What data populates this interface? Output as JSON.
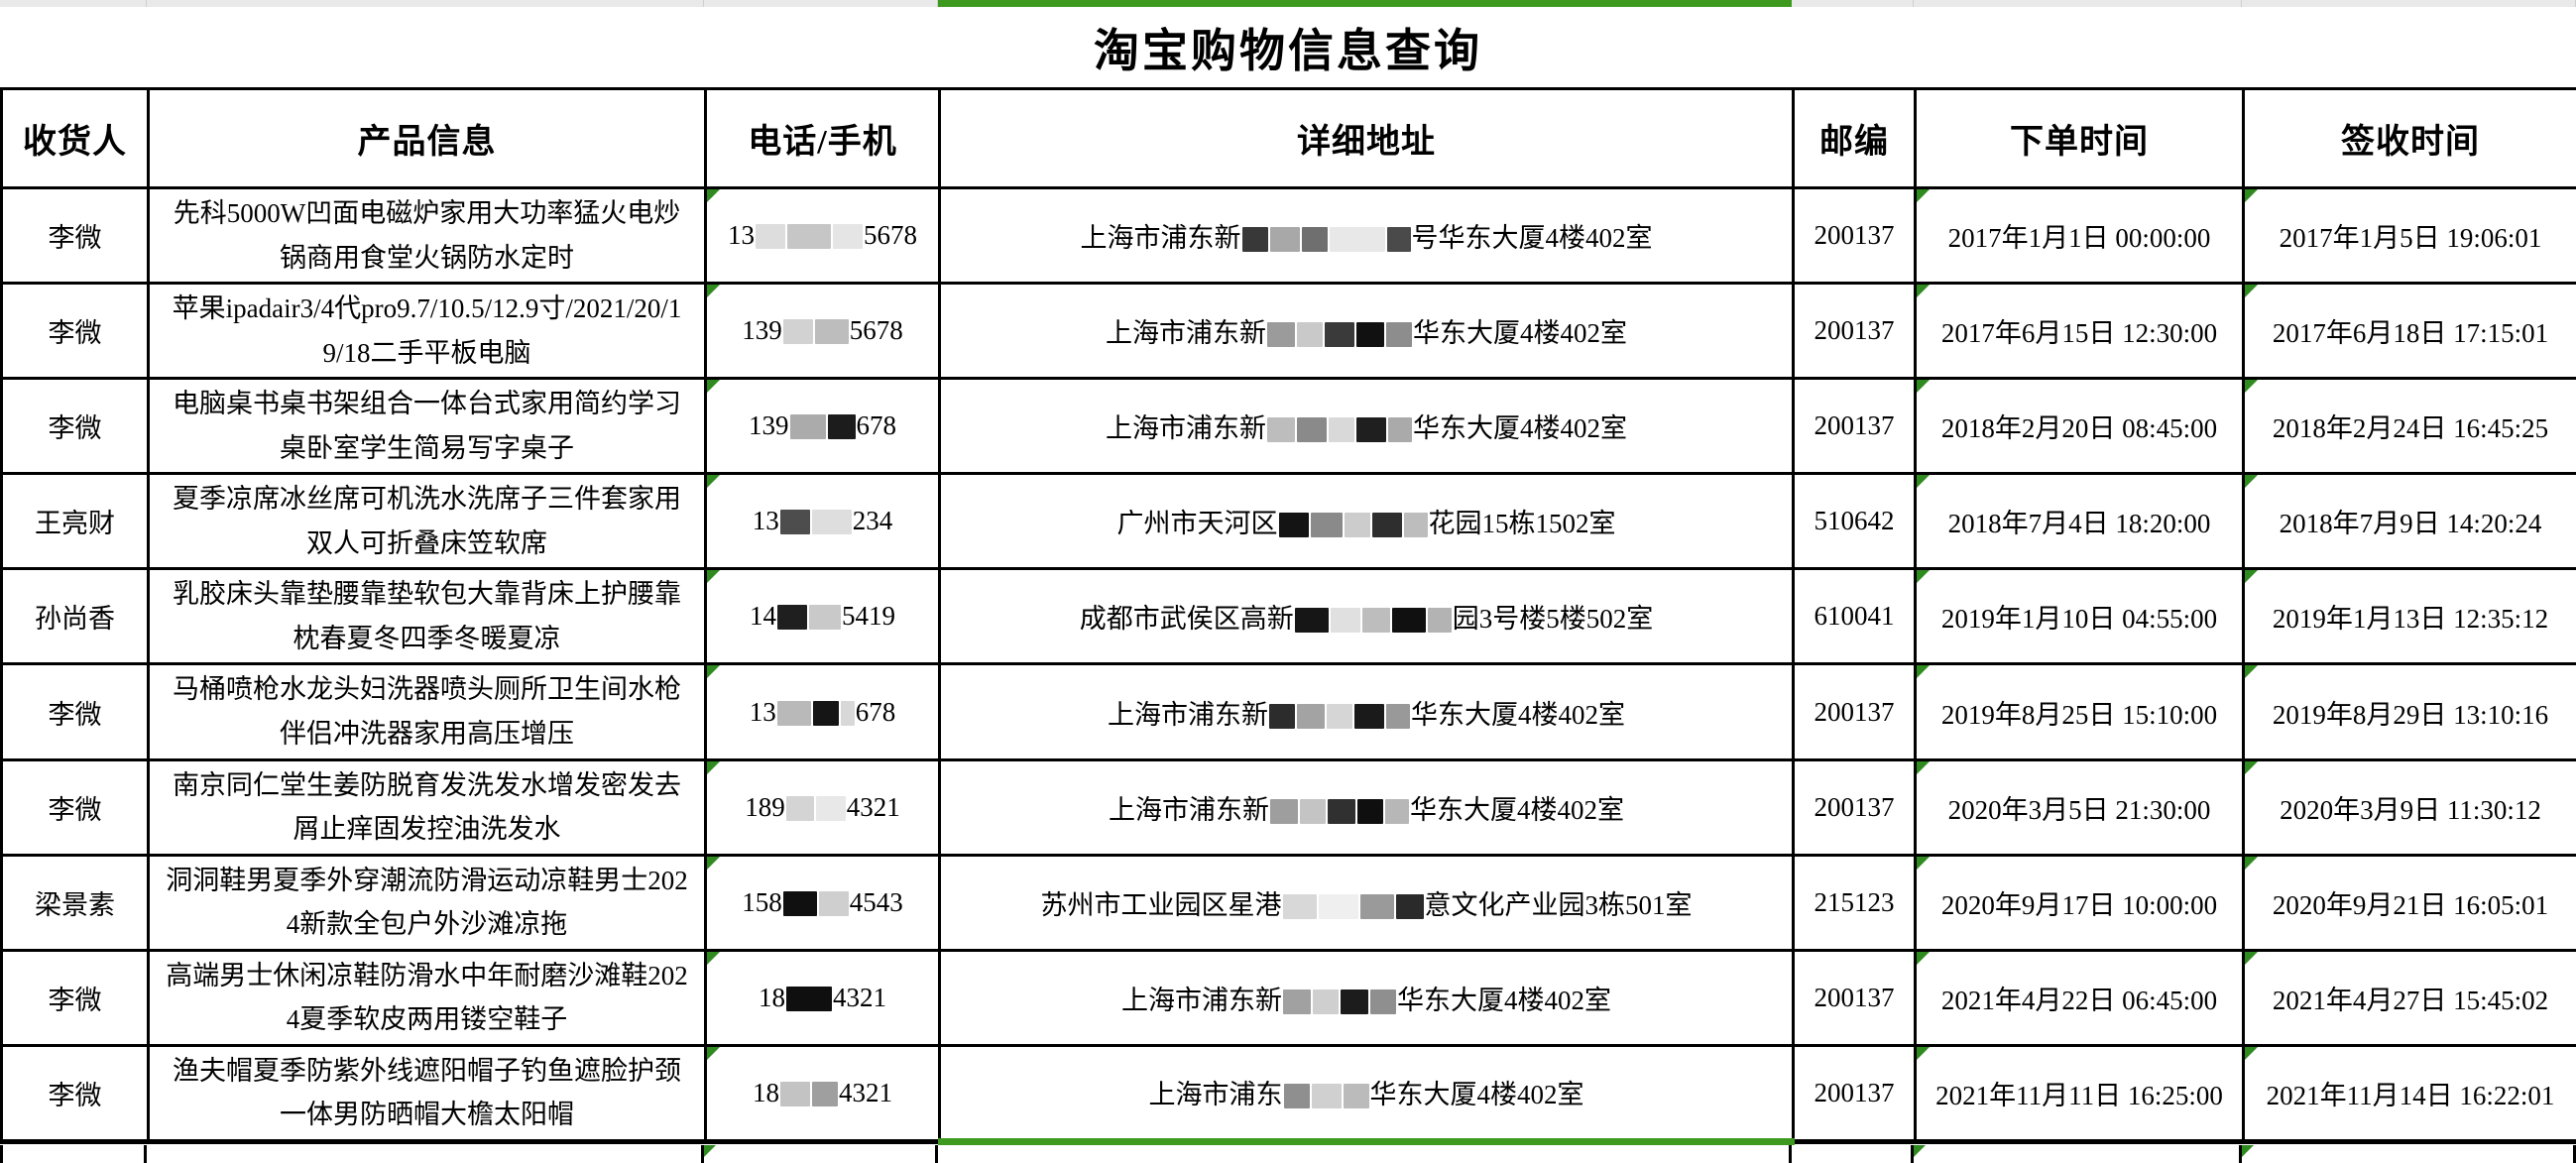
{
  "page": {
    "title": "淘宝购物信息查询"
  },
  "colors": {
    "selection_green": "#3e9a1f",
    "indicator_green": "#2f8b1f",
    "strip_gray": "#e9e9e9",
    "border_black": "#000000"
  },
  "top_strip": {
    "selected_column": "详细地址"
  },
  "table": {
    "headers": [
      "收货人",
      "产品信息",
      "电话/手机",
      "详细地址",
      "邮编",
      "下单时间",
      "签收时间"
    ],
    "rows": [
      {
        "recipient": "李微",
        "product": "先科5000W凹面电磁炉家用大功率猛火电炒锅商用食堂火锅防水定时",
        "phone": {
          "prefix": "13",
          "redactions": [
            [
              "#dddddd",
              30
            ],
            [
              "#c6c6c6",
              44
            ],
            [
              "#e5e5e5",
              30
            ]
          ],
          "suffix": "5678"
        },
        "address": {
          "prefix": "上海市浦东新",
          "redactions": [
            [
              "#383838",
              26
            ],
            [
              "#a8a8a8",
              30
            ],
            [
              "#6f6f6f",
              26
            ],
            [
              "#e8e8e8",
              56
            ],
            [
              "#4a4a4a",
              24
            ]
          ],
          "suffix": "号华东大厦4楼402室"
        },
        "postcode": "200137",
        "order_time": "2017年1月1日 00:00:00",
        "sign_time": "2017年1月5日 19:06:01"
      },
      {
        "recipient": "李微",
        "product": "苹果ipadair3/4代pro9.7/10.5/12.9寸/2021/20/19/18二手平板电脑",
        "phone": {
          "prefix": "139",
          "redactions": [
            [
              "#d2d2d2",
              30
            ],
            [
              "#bdbdbd",
              34
            ]
          ],
          "suffix": "5678"
        },
        "address": {
          "prefix": "上海市浦东新",
          "redactions": [
            [
              "#9b9b9b",
              28
            ],
            [
              "#c9c9c9",
              26
            ],
            [
              "#3a3a3a",
              30
            ],
            [
              "#111111",
              28
            ],
            [
              "#8d8d8d",
              26
            ]
          ],
          "suffix": "华东大厦4楼402室"
        },
        "postcode": "200137",
        "order_time": "2017年6月15日 12:30:00",
        "sign_time": "2017年6月18日 17:15:01"
      },
      {
        "recipient": "李微",
        "product": "电脑桌书桌书架组合一体台式家用简约学习桌卧室学生简易写字桌子",
        "phone": {
          "prefix": "139",
          "redactions": [
            [
              "#ababab",
              36
            ],
            [
              "#1c1c1c",
              28
            ]
          ],
          "suffix": "678"
        },
        "address": {
          "prefix": "上海市浦东新",
          "redactions": [
            [
              "#bdbdbd",
              28
            ],
            [
              "#8a8a8a",
              30
            ],
            [
              "#d9d9d9",
              26
            ],
            [
              "#1f1f1f",
              30
            ],
            [
              "#aaaaaa",
              24
            ]
          ],
          "suffix": "华东大厦4楼402室"
        },
        "postcode": "200137",
        "order_time": "2018年2月20日 08:45:00",
        "sign_time": "2018年2月24日 16:45:25"
      },
      {
        "recipient": "王亮财",
        "product": "夏季凉席冰丝席可机洗水洗席子三件套家用双人可折叠床笠软席",
        "phone": {
          "prefix": "13",
          "redactions": [
            [
              "#4d4d4d",
              30
            ],
            [
              "#dedede",
              40
            ]
          ],
          "suffix": "234"
        },
        "address": {
          "prefix": "广州市天河区",
          "redactions": [
            [
              "#141414",
              30
            ],
            [
              "#8a8a8a",
              32
            ],
            [
              "#cccccc",
              26
            ],
            [
              "#2e2e2e",
              30
            ],
            [
              "#bdbdbd",
              24
            ]
          ],
          "suffix": "花园15栋1502室"
        },
        "postcode": "510642",
        "order_time": "2018年7月4日 18:20:00",
        "sign_time": "2018年7月9日 14:20:24"
      },
      {
        "recipient": "孙尚香",
        "product": "乳胶床头靠垫腰靠垫软包大靠背床上护腰靠枕春夏冬四季冬暖夏凉",
        "phone": {
          "prefix": "14",
          "redactions": [
            [
              "#1f1f1f",
              30
            ],
            [
              "#c9c9c9",
              32
            ]
          ],
          "suffix": "5419"
        },
        "address": {
          "prefix": "成都市武侯区高新",
          "redactions": [
            [
              "#161616",
              34
            ],
            [
              "#e0e0e0",
              30
            ],
            [
              "#bdbdbd",
              28
            ],
            [
              "#101010",
              34
            ],
            [
              "#b3b3b3",
              24
            ]
          ],
          "suffix": "园3号楼5楼502室"
        },
        "postcode": "610041",
        "order_time": "2019年1月10日 04:55:00",
        "sign_time": "2019年1月13日 12:35:12"
      },
      {
        "recipient": "李微",
        "product": "马桶喷枪水龙头妇洗器喷头厕所卫生间水枪伴侣冲洗器家用高压增压",
        "phone": {
          "prefix": "13",
          "redactions": [
            [
              "#b9b9b9",
              34
            ],
            [
              "#151515",
              26
            ],
            [
              "#d8d8d8",
              14
            ]
          ],
          "suffix": "678"
        },
        "address": {
          "prefix": "上海市浦东新",
          "redactions": [
            [
              "#2c2c2c",
              26
            ],
            [
              "#a3a3a3",
              28
            ],
            [
              "#d6d6d6",
              26
            ],
            [
              "#1a1a1a",
              30
            ],
            [
              "#999999",
              24
            ]
          ],
          "suffix": "华东大厦4楼402室"
        },
        "postcode": "200137",
        "order_time": "2019年8月25日 15:10:00",
        "sign_time": "2019年8月29日 13:10:16"
      },
      {
        "recipient": "李微",
        "product": "南京同仁堂生姜防脱育发洗发水增发密发去屑止痒固发控油洗发水",
        "phone": {
          "prefix": "189",
          "redactions": [
            [
              "#d4d4d4",
              28
            ],
            [
              "#e8e8e8",
              30
            ]
          ],
          "suffix": "4321"
        },
        "address": {
          "prefix": "上海市浦东新",
          "redactions": [
            [
              "#9e9e9e",
              28
            ],
            [
              "#c4c4c4",
              26
            ],
            [
              "#303030",
              28
            ],
            [
              "#0f0f0f",
              26
            ],
            [
              "#b7b7b7",
              24
            ]
          ],
          "suffix": "华东大厦4楼402室"
        },
        "postcode": "200137",
        "order_time": "2020年3月5日 21:30:00",
        "sign_time": "2020年3月9日 11:30:12"
      },
      {
        "recipient": "梁景素",
        "product": "洞洞鞋男夏季外穿潮流防滑运动凉鞋男士2024新款全包户外沙滩凉拖",
        "phone": {
          "prefix": "158",
          "redactions": [
            [
              "#101010",
              34
            ],
            [
              "#cfcfcf",
              30
            ]
          ],
          "suffix": "4543"
        },
        "address": {
          "prefix": "苏州市工业园区星港",
          "redactions": [
            [
              "#d8d8d8",
              34
            ],
            [
              "#efefef",
              40
            ],
            [
              "#9a9a9a",
              34
            ],
            [
              "#2a2a2a",
              28
            ]
          ],
          "suffix": "意文化产业园3栋501室"
        },
        "postcode": "215123",
        "order_time": "2020年9月17日 10:00:00",
        "sign_time": "2020年9月21日 16:05:01"
      },
      {
        "recipient": "李微",
        "product": "高端男士休闲凉鞋防滑水中年耐磨沙滩鞋2024夏季软皮两用镂空鞋子",
        "phone": {
          "prefix": "18",
          "redactions": [
            [
              "#0f0f0f",
              46
            ]
          ],
          "suffix": "4321"
        },
        "address": {
          "prefix": "上海市浦东新",
          "redactions": [
            [
              "#a1a1a1",
              28
            ],
            [
              "#cfcfcf",
              26
            ],
            [
              "#1c1c1c",
              28
            ],
            [
              "#8f8f8f",
              26
            ]
          ],
          "suffix": "华东大厦4楼402室"
        },
        "postcode": "200137",
        "order_time": "2021年4月22日 06:45:00",
        "sign_time": "2021年4月27日 15:45:02"
      },
      {
        "recipient": "李微",
        "product": "渔夫帽夏季防紫外线遮阳帽子钓鱼遮脸护颈一体男防晒帽大檐太阳帽",
        "phone": {
          "prefix": "18",
          "redactions": [
            [
              "#c3c3c3",
              30
            ],
            [
              "#9f9f9f",
              26
            ]
          ],
          "suffix": "4321"
        },
        "address": {
          "prefix": "上海市浦东",
          "redactions": [
            [
              "#8f8f8f",
              26
            ],
            [
              "#d0d0d0",
              30
            ],
            [
              "#bbbbbb",
              26
            ]
          ],
          "suffix": "华东大厦4楼402室"
        },
        "postcode": "200137",
        "order_time": "2021年11月11日 16:25:00",
        "sign_time": "2021年11月14日 16:22:01"
      }
    ]
  }
}
